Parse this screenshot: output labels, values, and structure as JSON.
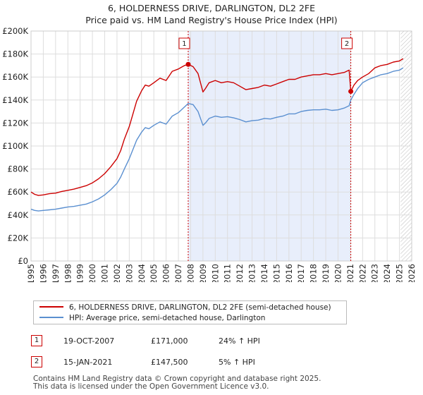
{
  "title": "6, HOLDERNESS DRIVE, DARLINGTON, DL2 2FE",
  "subtitle": "Price paid vs. HM Land Registry's House Price Index (HPI)",
  "colors": {
    "property": "#cc0000",
    "hpi": "#5a8fd0",
    "shade": "#e8eefb",
    "grid": "#dddddd",
    "vline": "#cc0000",
    "hatch": "#bbbbbb"
  },
  "chart_data": {
    "type": "line",
    "title": "6, HOLDERNESS DRIVE, DARLINGTON, DL2 2FE",
    "subtitle": "Price paid vs. HM Land Registry's House Price Index (HPI)",
    "xlabel": "",
    "ylabel": "",
    "xlim": [
      1995,
      2026
    ],
    "ylim": [
      0,
      200000
    ],
    "grid": true,
    "legend_position": "below",
    "x_ticks": [
      1995,
      1996,
      1997,
      1998,
      1999,
      2000,
      2001,
      2002,
      2003,
      2004,
      2005,
      2006,
      2007,
      2008,
      2009,
      2010,
      2011,
      2012,
      2013,
      2014,
      2015,
      2016,
      2017,
      2018,
      2019,
      2020,
      2021,
      2022,
      2023,
      2024,
      2025,
      2026
    ],
    "x_tick_labels": [
      "1995",
      "1996",
      "1997",
      "1998",
      "1999",
      "2000",
      "2001",
      "2002",
      "2003",
      "2004",
      "2005",
      "2006",
      "2007",
      "2008",
      "2009",
      "2010",
      "2011",
      "2012",
      "2013",
      "2014",
      "2015",
      "2016",
      "2017",
      "2018",
      "2019",
      "2020",
      "2021",
      "2022",
      "2023",
      "2024",
      "2025",
      "2026"
    ],
    "y_ticks": [
      0,
      20000,
      40000,
      60000,
      80000,
      100000,
      120000,
      140000,
      160000,
      180000,
      200000
    ],
    "y_tick_labels": [
      "£0",
      "£20K",
      "£40K",
      "£60K",
      "£80K",
      "£100K",
      "£120K",
      "£140K",
      "£160K",
      "£180K",
      "£200K"
    ],
    "shaded_region": [
      2007.8,
      2021.04
    ],
    "future_hatch_start": 2025.1,
    "series": [
      {
        "name": "6, HOLDERNESS DRIVE, DARLINGTON, DL2 2FE (semi-detached house)",
        "color": "#cc0000",
        "x": [
          1995.0,
          1995.3,
          1995.6,
          1996.0,
          1996.5,
          1997.0,
          1997.5,
          1998.0,
          1998.5,
          1999.0,
          1999.5,
          2000.0,
          2000.5,
          2001.0,
          2001.5,
          2002.0,
          2002.3,
          2002.6,
          2003.0,
          2003.3,
          2003.6,
          2004.0,
          2004.3,
          2004.6,
          2005.0,
          2005.5,
          2006.0,
          2006.5,
          2007.0,
          2007.5,
          2007.8,
          2008.2,
          2008.6,
          2009.0,
          2009.2,
          2009.5,
          2010.0,
          2010.5,
          2011.0,
          2011.5,
          2012.0,
          2012.5,
          2013.0,
          2013.5,
          2014.0,
          2014.5,
          2015.0,
          2015.5,
          2016.0,
          2016.5,
          2017.0,
          2017.5,
          2018.0,
          2018.5,
          2019.0,
          2019.5,
          2020.0,
          2020.5,
          2020.9,
          2021.04,
          2021.3,
          2021.6,
          2022.0,
          2022.5,
          2023.0,
          2023.5,
          2024.0,
          2024.5,
          2025.0,
          2025.3
        ],
        "values": [
          60000,
          58000,
          57000,
          57500,
          58500,
          59000,
          60500,
          61500,
          62500,
          64000,
          65500,
          68000,
          71500,
          76000,
          82000,
          89000,
          96000,
          106000,
          117000,
          128000,
          139000,
          148000,
          153000,
          152000,
          155000,
          159000,
          157000,
          165000,
          167000,
          170000,
          171000,
          169000,
          163000,
          147000,
          150000,
          155000,
          157000,
          155000,
          156000,
          155000,
          152000,
          149000,
          150000,
          151000,
          153000,
          152000,
          154000,
          156000,
          158000,
          158000,
          160000,
          161000,
          162000,
          162000,
          163000,
          162000,
          163000,
          164000,
          166000,
          147500,
          153000,
          157000,
          160000,
          163000,
          168000,
          170000,
          171000,
          173000,
          174000,
          176000
        ]
      },
      {
        "name": "HPI: Average price, semi-detached house, Darlington",
        "color": "#5a8fd0",
        "x": [
          1995.0,
          1995.3,
          1995.6,
          1996.0,
          1996.5,
          1997.0,
          1997.5,
          1998.0,
          1998.5,
          1999.0,
          1999.5,
          2000.0,
          2000.5,
          2001.0,
          2001.5,
          2002.0,
          2002.3,
          2002.6,
          2003.0,
          2003.3,
          2003.6,
          2004.0,
          2004.3,
          2004.6,
          2005.0,
          2005.5,
          2006.0,
          2006.5,
          2007.0,
          2007.5,
          2007.8,
          2008.2,
          2008.6,
          2009.0,
          2009.2,
          2009.5,
          2010.0,
          2010.5,
          2011.0,
          2011.5,
          2012.0,
          2012.5,
          2013.0,
          2013.5,
          2014.0,
          2014.5,
          2015.0,
          2015.5,
          2016.0,
          2016.5,
          2017.0,
          2017.5,
          2018.0,
          2018.5,
          2019.0,
          2019.5,
          2020.0,
          2020.5,
          2020.9,
          2021.04,
          2021.3,
          2021.6,
          2022.0,
          2022.5,
          2023.0,
          2023.5,
          2024.0,
          2024.5,
          2025.0,
          2025.3
        ],
        "values": [
          45000,
          44000,
          43500,
          44000,
          44500,
          45000,
          46000,
          47000,
          47500,
          48500,
          49500,
          51500,
          54000,
          57500,
          62000,
          67500,
          73000,
          80000,
          89000,
          97000,
          105000,
          112000,
          116000,
          115000,
          118000,
          121000,
          119000,
          126000,
          129000,
          134000,
          137000,
          136000,
          130000,
          118000,
          120000,
          124000,
          126000,
          125000,
          125500,
          124500,
          123000,
          121000,
          122000,
          122500,
          124000,
          123500,
          125000,
          126000,
          128000,
          128000,
          130000,
          131000,
          131500,
          131500,
          132000,
          131000,
          131500,
          133000,
          135000,
          140000,
          145000,
          150000,
          155000,
          158000,
          160000,
          162000,
          163000,
          165000,
          166000,
          168000
        ]
      }
    ],
    "sales": [
      {
        "label": "1",
        "x": 2007.8,
        "value": 171000,
        "date": "19-OCT-2007",
        "price": "£171,000",
        "hpi_change": "24% ↑ HPI"
      },
      {
        "label": "2",
        "x": 2021.04,
        "value": 147500,
        "date": "15-JAN-2021",
        "price": "£147,500",
        "hpi_change": "5% ↑ HPI"
      }
    ]
  },
  "legend": [
    {
      "label": "6, HOLDERNESS DRIVE, DARLINGTON, DL2 2FE (semi-detached house)",
      "color": "#cc0000"
    },
    {
      "label": "HPI: Average price, semi-detached house, Darlington",
      "color": "#5a8fd0"
    }
  ],
  "sales_table": [
    {
      "label": "1",
      "date": "19-OCT-2007",
      "price": "£171,000",
      "hpi": "24% ↑ HPI"
    },
    {
      "label": "2",
      "date": "15-JAN-2021",
      "price": "£147,500",
      "hpi": "5% ↑ HPI"
    }
  ],
  "footer": {
    "line1": "Contains HM Land Registry data © Crown copyright and database right 2025.",
    "line2": "This data is licensed under the Open Government Licence v3.0."
  }
}
